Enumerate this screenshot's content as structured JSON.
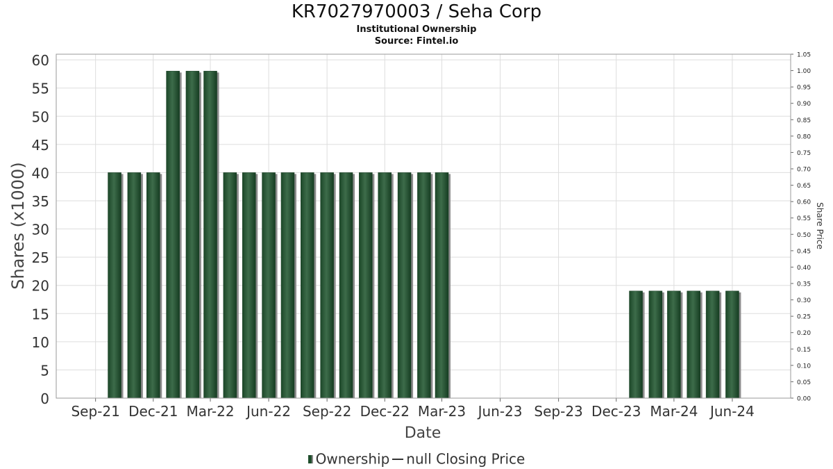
{
  "header": {
    "title": "KR7027970003 / Seha Corp",
    "subtitle": "Institutional Ownership",
    "source": "Source: Fintel.io"
  },
  "legend": {
    "ownership": "Ownership",
    "price": "null Closing Price"
  },
  "colors": {
    "bar": "#1e4d2b",
    "bar_highlight": "#3a6b48",
    "bar_shadow": "#8c8c8c",
    "grid": "#dddddd"
  },
  "chart_data": {
    "type": "bar",
    "title": "KR7027970003 / Seha Corp",
    "subtitle": "Institutional Ownership",
    "xlabel": "Date",
    "ylabel": "Shares (x1000)",
    "y2label": "Share Price",
    "ylim": [
      0,
      61
    ],
    "y2lim": [
      0,
      1.05
    ],
    "yticks": [
      0,
      5,
      10,
      15,
      20,
      25,
      30,
      35,
      40,
      45,
      50,
      55,
      60
    ],
    "y2ticks": [
      "0.00",
      "0.05",
      "0.10",
      "0.15",
      "0.20",
      "0.25",
      "0.30",
      "0.35",
      "0.40",
      "0.45",
      "0.50",
      "0.55",
      "0.60",
      "0.65",
      "0.70",
      "0.75",
      "0.80",
      "0.85",
      "0.90",
      "0.95",
      "1.00",
      "1.05"
    ],
    "xticks": [
      "Sep-21",
      "Dec-21",
      "Mar-22",
      "Jun-22",
      "Sep-22",
      "Dec-22",
      "Mar-23",
      "Jun-23",
      "Sep-23",
      "Dec-23",
      "Mar-24",
      "Jun-24"
    ],
    "grid": true,
    "legend_position": "bottom",
    "series": [
      {
        "name": "Ownership",
        "points": [
          {
            "date": "2021-10-01",
            "value": 40
          },
          {
            "date": "2021-11-01",
            "value": 40
          },
          {
            "date": "2021-12-01",
            "value": 40
          },
          {
            "date": "2022-01-01",
            "value": 58
          },
          {
            "date": "2022-02-01",
            "value": 58
          },
          {
            "date": "2022-03-01",
            "value": 58
          },
          {
            "date": "2022-04-01",
            "value": 40
          },
          {
            "date": "2022-05-01",
            "value": 40
          },
          {
            "date": "2022-06-01",
            "value": 40
          },
          {
            "date": "2022-07-01",
            "value": 40
          },
          {
            "date": "2022-08-01",
            "value": 40
          },
          {
            "date": "2022-09-01",
            "value": 40
          },
          {
            "date": "2022-10-01",
            "value": 40
          },
          {
            "date": "2022-11-01",
            "value": 40
          },
          {
            "date": "2022-12-01",
            "value": 40
          },
          {
            "date": "2023-01-01",
            "value": 40
          },
          {
            "date": "2023-02-01",
            "value": 40
          },
          {
            "date": "2023-03-01",
            "value": 40
          },
          {
            "date": "2024-01-01",
            "value": 19
          },
          {
            "date": "2024-02-01",
            "value": 19
          },
          {
            "date": "2024-03-01",
            "value": 19
          },
          {
            "date": "2024-04-01",
            "value": 19
          },
          {
            "date": "2024-05-01",
            "value": 19
          },
          {
            "date": "2024-06-01",
            "value": 19
          }
        ]
      }
    ]
  }
}
